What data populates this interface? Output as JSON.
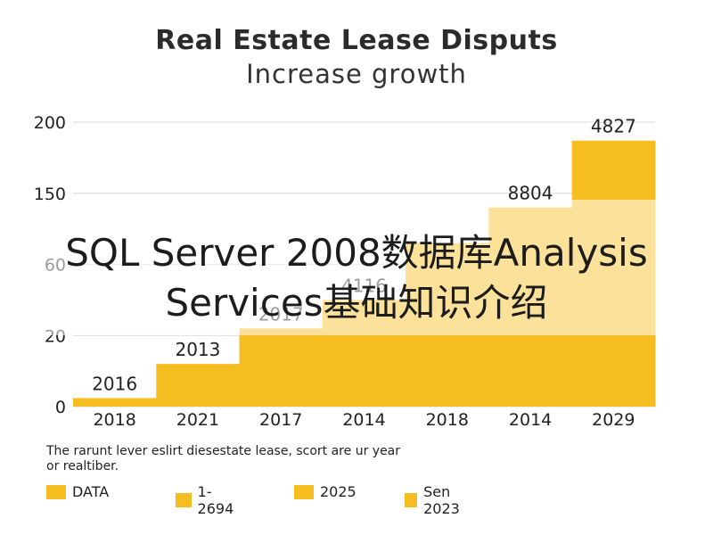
{
  "chart_data": {
    "type": "bar",
    "title": "Real Estate Lease Disputs",
    "subtitle": "Increase growth",
    "categories": [
      "2018",
      "2021",
      "2017",
      "2014",
      "2018",
      "2014",
      "2029"
    ],
    "values": [
      6,
      30,
      55,
      75,
      115,
      140,
      187
    ],
    "data_labels": [
      "2016",
      "2013",
      "2017",
      "4116",
      "",
      "8804",
      "4827"
    ],
    "y_ticks": [
      "0",
      "20",
      "60",
      "150",
      "200"
    ],
    "ylim": [
      0,
      200
    ],
    "grid": true,
    "bar_color": "#f5bd1f",
    "legend": {
      "placement": "bottom",
      "items": [
        "DATA",
        "1-2694",
        "2025",
        "Sen 2023"
      ]
    },
    "note": "The rarunt lever eslirt diesestate lease, scort are ur year or realtiber."
  },
  "watermark": {
    "line1": "SQL Server 2008数据库Analysis",
    "line2": "Services基础知识介绍"
  }
}
